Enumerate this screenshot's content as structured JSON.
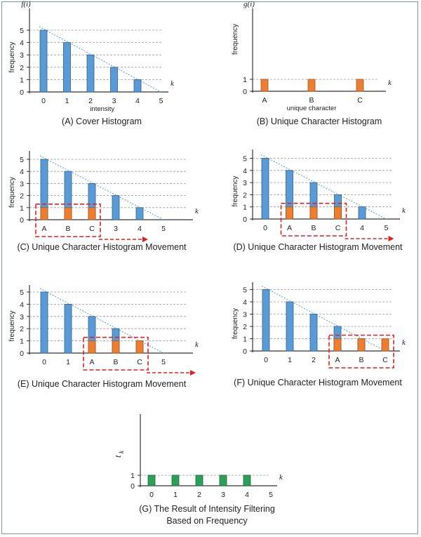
{
  "colors": {
    "cover": "#5b9bd5",
    "unique": "#ed7d31",
    "result": "#2e9e5b",
    "red_box": "#e02020",
    "trend": "#5b9bd5",
    "grid": "#9a9a9a"
  },
  "chart_data": [
    {
      "id": "A",
      "type": "bar",
      "title": "(A) Cover Histogram",
      "ylabel": "frequency",
      "xlabel": "intensity",
      "func_label": "f(i)",
      "axis_var": "k",
      "ylim": [
        0,
        5
      ],
      "x_ticks": [
        "0",
        "1",
        "2",
        "3",
        "4",
        "5"
      ],
      "y_ticks": [
        "0",
        "1",
        "2",
        "3",
        "4",
        "5"
      ],
      "series": [
        {
          "values": [
            5,
            4,
            3,
            2,
            1
          ]
        }
      ]
    },
    {
      "id": "B",
      "type": "bar",
      "title": "(B) Unique Character Histogram",
      "ylabel": "frequency",
      "xlabel": "unique character",
      "func_label": "g(i)",
      "axis_var": "k",
      "ylim": [
        0,
        1
      ],
      "x_ticks": [
        "A",
        "B",
        "C"
      ],
      "y_ticks": [
        "0",
        "1"
      ],
      "series": [
        {
          "values": [
            1,
            1,
            1
          ]
        }
      ]
    },
    {
      "id": "C",
      "type": "bar",
      "title": "(C) Unique Character Histogram Movement",
      "ylabel": "frequency",
      "axis_var": "k",
      "ylim": [
        0,
        5
      ],
      "x_ticks": [
        "A",
        "B",
        "C",
        "3",
        "4",
        "5"
      ],
      "y_ticks": [
        "0",
        "1",
        "2",
        "3",
        "4",
        "5"
      ],
      "series": [
        {
          "values": [
            5,
            4,
            3,
            2,
            1
          ]
        },
        {
          "values": [
            1,
            1,
            1
          ]
        }
      ],
      "unique_offset": 0
    },
    {
      "id": "D",
      "type": "bar",
      "title": "(D) Unique Character Histogram Movement",
      "ylabel": "frequency",
      "axis_var": "k",
      "ylim": [
        0,
        5
      ],
      "x_ticks": [
        "0",
        "A",
        "B",
        "C",
        "4",
        "5"
      ],
      "y_ticks": [
        "0",
        "1",
        "2",
        "3",
        "4",
        "5"
      ],
      "series": [
        {
          "values": [
            5,
            4,
            3,
            2,
            1
          ]
        },
        {
          "values": [
            1,
            1,
            1
          ]
        }
      ],
      "unique_offset": 1
    },
    {
      "id": "E",
      "type": "bar",
      "title": "(E) Unique Character Histogram Movement",
      "ylabel": "frequency",
      "axis_var": "k",
      "ylim": [
        0,
        5
      ],
      "x_ticks": [
        "0",
        "1",
        "A",
        "B",
        "C",
        "5"
      ],
      "y_ticks": [
        "0",
        "1",
        "2",
        "3",
        "4",
        "5"
      ],
      "series": [
        {
          "values": [
            5,
            4,
            3,
            2,
            1
          ]
        },
        {
          "values": [
            1,
            1,
            1
          ]
        }
      ],
      "unique_offset": 2
    },
    {
      "id": "F",
      "type": "bar",
      "title": "(F) Unique Character Histogram Movement",
      "ylabel": "frequency",
      "axis_var": "k",
      "ylim": [
        0,
        5
      ],
      "x_ticks": [
        "0",
        "1",
        "2",
        "A",
        "B",
        "C"
      ],
      "y_ticks": [
        "0",
        "1",
        "2",
        "3",
        "4",
        "5"
      ],
      "series": [
        {
          "values": [
            5,
            4,
            3,
            2,
            1
          ]
        },
        {
          "values": [
            1,
            1,
            1
          ]
        }
      ],
      "unique_offset": 3
    },
    {
      "id": "G",
      "type": "bar",
      "title": "(G) The Result of Intensity Filtering Based on Frequency",
      "title_lines": [
        "(G) The Result of Intensity Filtering",
        "Based on Frequency"
      ],
      "func_label": "t",
      "func_sub": "k",
      "axis_var": "k",
      "ylim": [
        0,
        1
      ],
      "x_ticks": [
        "0",
        "1",
        "2",
        "3",
        "4",
        "5"
      ],
      "y_ticks": [
        "0",
        "1"
      ],
      "series": [
        {
          "values": [
            1,
            1,
            1,
            1,
            1
          ]
        }
      ]
    }
  ]
}
